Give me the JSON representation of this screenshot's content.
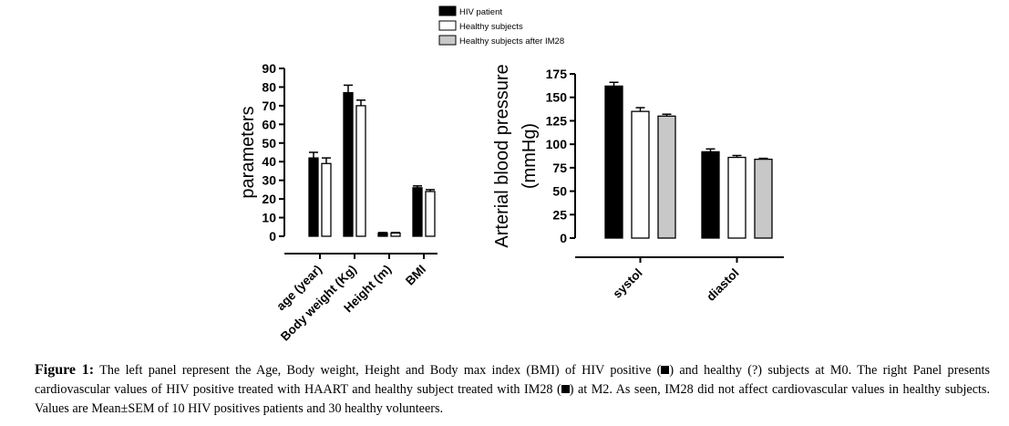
{
  "legend": {
    "items": [
      {
        "label": "HIV patient",
        "color": "#000000"
      },
      {
        "label": "Healthy subjects",
        "color": "#ffffff"
      },
      {
        "label": "Healthy subjects after IM28",
        "color": "#c8c8c8"
      }
    ]
  },
  "chart_data": [
    {
      "type": "bar",
      "title": "",
      "ylabel": "parameters",
      "xlabel": "",
      "ylim": [
        0,
        90
      ],
      "yticks": [
        0,
        10,
        20,
        30,
        40,
        50,
        60,
        70,
        80,
        90
      ],
      "categories": [
        "age (year)",
        "Body weight (Kg)",
        "Height (m)",
        "BMI"
      ],
      "series": [
        {
          "name": "HIV patient",
          "color": "#000000",
          "values": [
            42,
            77,
            1.7,
            26
          ],
          "sem": [
            3,
            4,
            0.3,
            1
          ]
        },
        {
          "name": "Healthy subjects",
          "color": "#ffffff",
          "values": [
            39,
            70,
            1.7,
            24
          ],
          "sem": [
            3,
            3,
            0.3,
            1
          ]
        }
      ]
    },
    {
      "type": "bar",
      "title": "",
      "ylabel": "Arterial blood pressure (mmHg)",
      "ylabel_lines": [
        "Arterial blood pressure",
        "(mmHg)"
      ],
      "xlabel": "",
      "ylim": [
        0,
        175
      ],
      "yticks": [
        0,
        25,
        50,
        75,
        100,
        125,
        150,
        175
      ],
      "categories": [
        "systol",
        "diastol"
      ],
      "series": [
        {
          "name": "HIV patient",
          "color": "#000000",
          "values": [
            162,
            92
          ],
          "sem": [
            4,
            3
          ]
        },
        {
          "name": "Healthy subjects",
          "color": "#ffffff",
          "values": [
            135,
            86
          ],
          "sem": [
            4,
            2
          ]
        },
        {
          "name": "Healthy subjects after IM28",
          "color": "#c8c8c8",
          "values": [
            130,
            84
          ],
          "sem": [
            2,
            1
          ]
        }
      ]
    }
  ],
  "caption": {
    "label": "Figure 1:",
    "part1": " The left panel represent the Age, Body weight, Height and Body max index (BMI) of HIV positive (",
    "part2": ") and healthy (?) subjects at M0. The right Panel presents cardiovascular values of HIV positive treated with HAART and healthy subject treated with IM28 (",
    "part3": ") at M2. As seen, IM28 did not affect cardiovascular values in healthy subjects. Values are Mean±SEM of 10 HIV positives patients and 30 healthy volunteers."
  }
}
